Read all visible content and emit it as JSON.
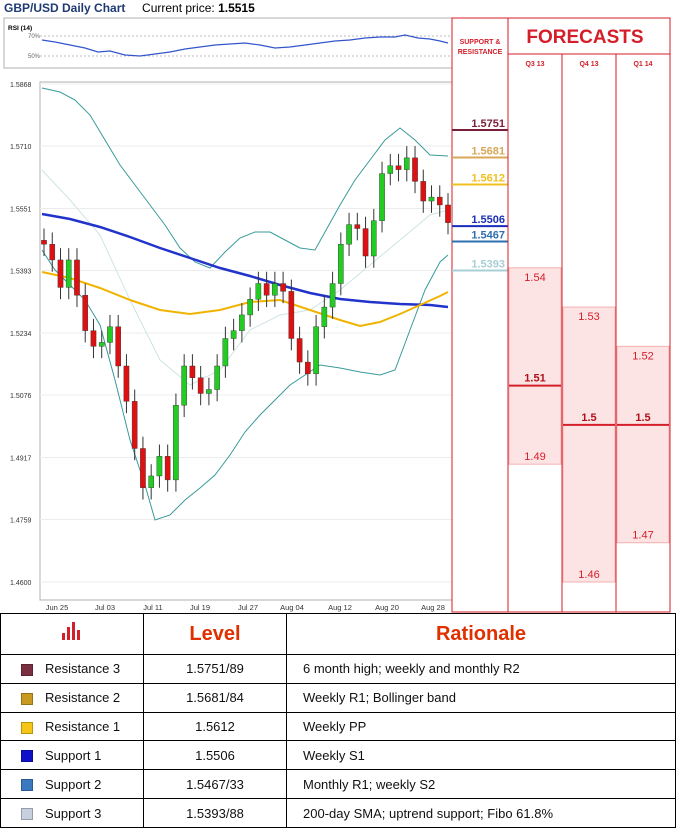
{
  "header": {
    "title": "GBP/USD Daily Chart",
    "price_label": "Current price:",
    "price": "1.5515"
  },
  "colors": {
    "r3": "#7a1f3a",
    "r2": "#d9a75a",
    "r1": "#f0c020",
    "s1": "#1a2eb8",
    "s2": "#2e6fb0",
    "s3": "#a9cfd6",
    "forecast_red": "#d41e2a",
    "forecast_fill": "#fde4e4",
    "ma_blue": "#2233cc",
    "ma_yellow": "#f0b400",
    "band": "#3a9a9a"
  },
  "chart_data": [
    {
      "type": "line",
      "title": "RSI (14)",
      "y_ticks": [
        "70%",
        "50%"
      ]
    },
    {
      "type": "candlestick",
      "y_ticks": [
        "1.5868",
        "1.5710",
        "1.5551",
        "1.5393",
        "1.5234",
        "1.5076",
        "1.4917",
        "1.4759",
        "1.4600"
      ],
      "x_ticks": [
        "Jun 25",
        "Jul 03",
        "Jul 11",
        "Jul 19",
        "Jul 27",
        "Aug 04",
        "Aug 12",
        "Aug 20",
        "Aug 28"
      ],
      "ylim": [
        1.46,
        1.5868
      ],
      "series": [
        {
          "name": "Support & Resistance",
          "levels": [
            "1.5751",
            "1.5681",
            "1.5612",
            "1.5506",
            "1.5467",
            "1.5393"
          ]
        }
      ]
    },
    {
      "type": "bar",
      "title": "FORECASTS",
      "categories": [
        "Q3 13",
        "Q4 13",
        "Q1 14"
      ],
      "series": [
        {
          "name": "Q3 13",
          "high": "1.54",
          "mid": "1.51",
          "low": "1.49"
        },
        {
          "name": "Q4 13",
          "high": "1.53",
          "mid": "1.5",
          "low": "1.46"
        },
        {
          "name": "Q1 14",
          "high": "1.52",
          "mid": "1.5",
          "low": "1.47"
        }
      ]
    }
  ],
  "sr_panel": {
    "title_line1": "SUPPORT &",
    "title_line2": "RESISTANCE"
  },
  "forecast_panel": {
    "title": "FORECASTS"
  },
  "table": {
    "header_level": "Level",
    "header_rationale": "Rationale",
    "rows": [
      {
        "name": "Resistance 3",
        "level": "1.5751/89",
        "rationale": "6 month high; weekly and monthly R2",
        "color": "#7a3040"
      },
      {
        "name": "Resistance 2",
        "level": "1.5681/84",
        "rationale": "Weekly R1; Bollinger band",
        "color": "#c99a20"
      },
      {
        "name": "Resistance 1",
        "level": "1.5612",
        "rationale": "Weekly PP",
        "color": "#f5c518"
      },
      {
        "name": "Support 1",
        "level": "1.5506",
        "rationale": "Weekly S1",
        "color": "#1010c8"
      },
      {
        "name": "Support 2",
        "level": "1.5467/33",
        "rationale": "Monthly R1; weekly S2",
        "color": "#3a78c0"
      },
      {
        "name": "Support 3",
        "level": "1.5393/88",
        "rationale": "200-day SMA; uptrend support; Fibo 61.8%",
        "color": "#c8d0e0"
      }
    ]
  }
}
